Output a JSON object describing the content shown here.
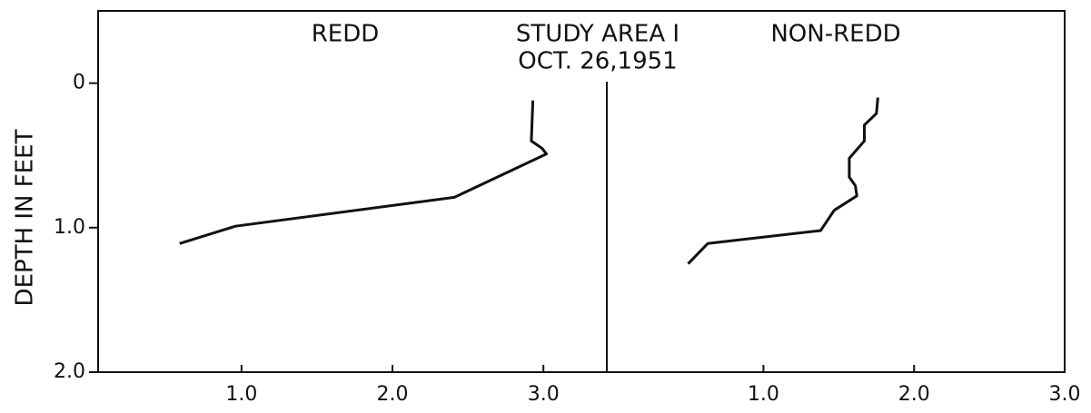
{
  "chart_data": [
    {
      "type": "line",
      "title": "REDD",
      "annotation": [
        "STUDY AREA I",
        "OCT. 26,1951"
      ],
      "ylabel": "DEPTH IN FEET",
      "x": [
        2.93,
        2.92,
        2.99,
        3.02,
        2.41,
        0.96,
        0.59
      ],
      "y": [
        0.12,
        0.4,
        0.45,
        0.49,
        0.79,
        0.99,
        1.11
      ],
      "color": "#111111",
      "xlim": [
        0.05,
        3.42
      ],
      "xticks": [
        {
          "value": 1,
          "label": "1.0"
        },
        {
          "value": 2,
          "label": "2.0"
        },
        {
          "value": 3,
          "label": "3.0"
        }
      ],
      "ylim": [
        2.0,
        -0.5
      ],
      "yticks": [
        0,
        {
          "value": 1,
          "label": "1.0"
        },
        {
          "value": 2,
          "label": "2.0"
        }
      ]
    },
    {
      "type": "line",
      "title": "NON-REDD",
      "x": [
        1.76,
        1.75,
        1.67,
        1.67,
        1.57,
        1.57,
        1.61,
        1.62,
        1.47,
        1.38,
        0.63,
        0.5
      ],
      "y": [
        0.1,
        0.21,
        0.29,
        0.4,
        0.52,
        0.65,
        0.71,
        0.78,
        0.88,
        1.02,
        1.11,
        1.25
      ],
      "color": "#111111",
      "xlim": [
        -0.04,
        3.0
      ],
      "xticks": [
        {
          "value": 1,
          "label": "1.0"
        },
        {
          "value": 2,
          "label": "2.0"
        },
        {
          "value": 3,
          "label": "3.0"
        }
      ],
      "ylim": [
        2.0,
        -0.5
      ]
    }
  ]
}
